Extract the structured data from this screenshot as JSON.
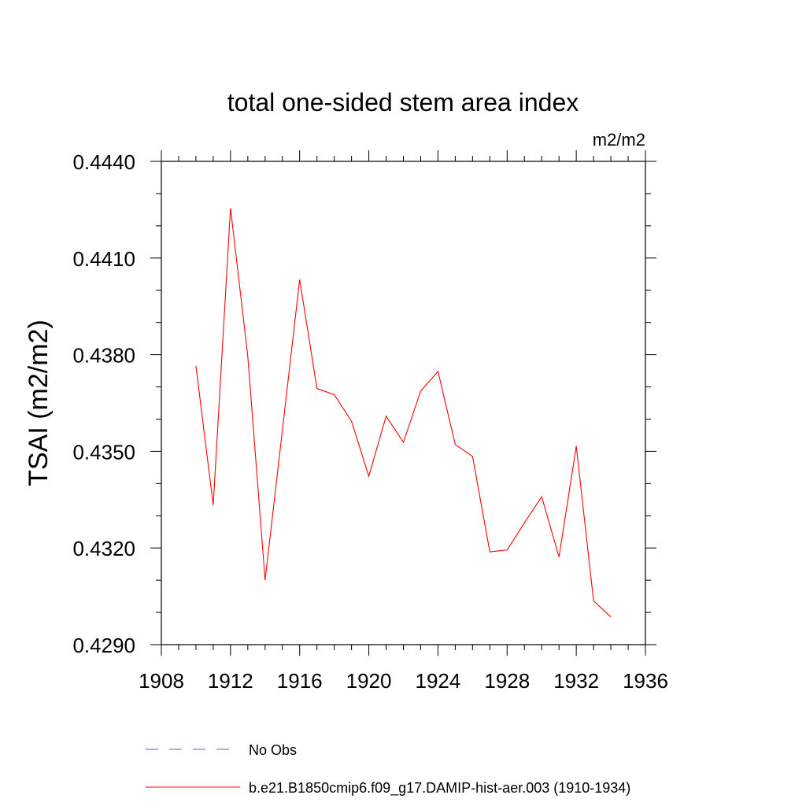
{
  "chart_data": {
    "type": "line",
    "title": "total one-sided stem area index",
    "units": "m2/m2",
    "xlabel": "",
    "ylabel": "TSAI  (m2/m2)",
    "xlim": [
      1908,
      1936
    ],
    "ylim": [
      0.429,
      0.444
    ],
    "x_ticks": [
      "1908",
      "1912",
      "1916",
      "1920",
      "1924",
      "1928",
      "1932",
      "1936"
    ],
    "y_ticks": [
      "0.4290",
      "0.4320",
      "0.4350",
      "0.4380",
      "0.4410",
      "0.4440"
    ],
    "grid": false,
    "legend_position": "bottom",
    "series": [
      {
        "name": "b.e21.B1850cmip6.f09_g17.DAMIP-hist-aer.003 (1910-1934)",
        "color": "#ff0000",
        "style": "solid",
        "x": [
          1910,
          1911,
          1912,
          1913,
          1914,
          1915,
          1916,
          1917,
          1918,
          1919,
          1920,
          1921,
          1922,
          1923,
          1924,
          1925,
          1926,
          1927,
          1928,
          1929,
          1930,
          1931,
          1932,
          1933,
          1934
        ],
        "y": [
          0.43765,
          0.43333,
          0.44255,
          0.43795,
          0.431,
          0.43565,
          0.44033,
          0.43695,
          0.43676,
          0.43593,
          0.43423,
          0.43609,
          0.43528,
          0.43687,
          0.43748,
          0.43521,
          0.43484,
          0.43188,
          0.43194,
          0.43278,
          0.43359,
          0.43172,
          0.43516,
          0.43036,
          0.42986
        ]
      },
      {
        "name": "No Obs",
        "color": "#6a5acd",
        "style": "dashed",
        "x": [],
        "y": []
      }
    ]
  }
}
